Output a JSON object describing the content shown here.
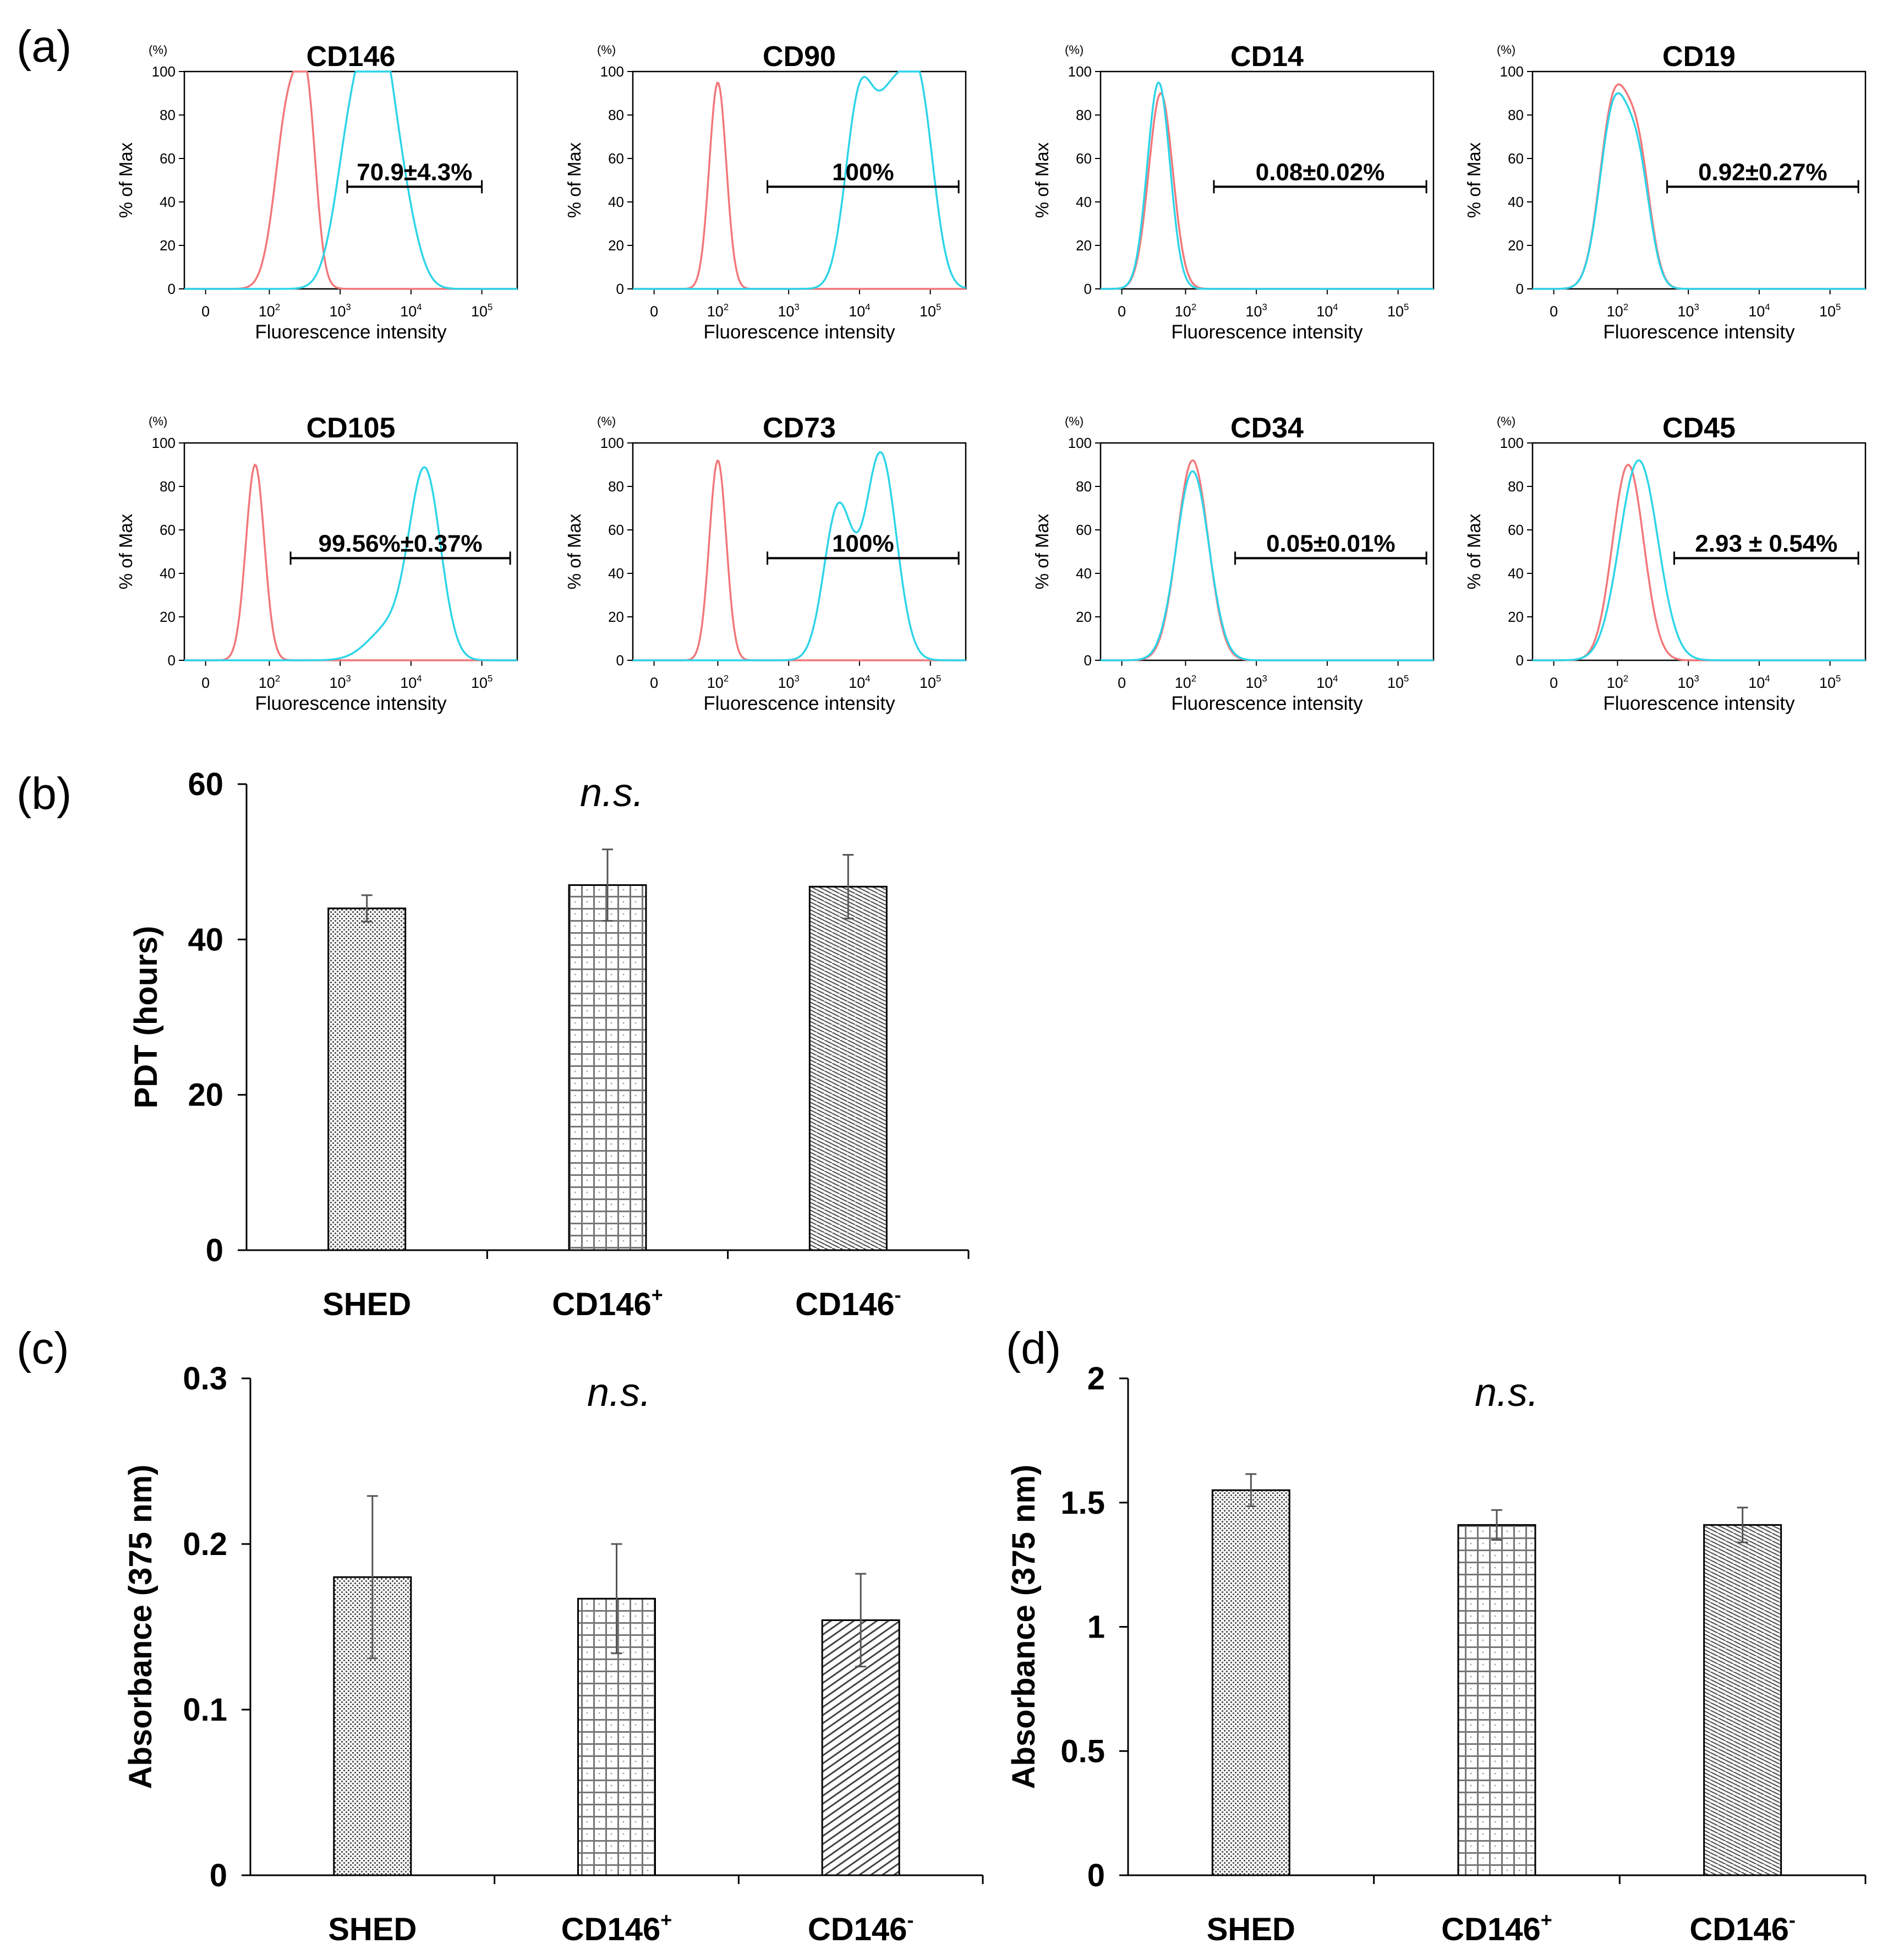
{
  "figure": {
    "panel_labels": [
      "(a)",
      "(b)",
      "(c)",
      "(d)"
    ],
    "colors": {
      "isotype": "#f2777a",
      "stained": "#2dd4e8",
      "axis": "#000000",
      "text": "#000000"
    }
  },
  "chart_data": [
    {
      "panel": "(a)",
      "type": "histogram",
      "shared": {
        "ylabel": "% of Max",
        "yunit": "(%)",
        "xlabel": "Fluorescence intensity",
        "yticks": [
          "0",
          "20",
          "40",
          "60",
          "80",
          "100"
        ],
        "xticks": [
          {
            "base": "0",
            "exp": ""
          },
          {
            "base": "10",
            "exp": "2"
          },
          {
            "base": "10",
            "exp": "3"
          },
          {
            "base": "10",
            "exp": "4"
          },
          {
            "base": "10",
            "exp": "5"
          }
        ],
        "ylim": [
          0,
          100
        ],
        "x_scale": "biexponential"
      },
      "histograms": [
        {
          "marker": "CD146",
          "gate_label": "70.9±4.3%",
          "gate": [
            3.1,
            5.0
          ],
          "isotype": {
            "peaks": [
              [
                2.3,
                0.2,
                0.9
              ],
              [
                2.55,
                0.12,
                0.55
              ]
            ]
          },
          "stained": {
            "peaks": [
              [
                3.2,
                0.24,
                0.8
              ],
              [
                3.55,
                0.2,
                0.82
              ],
              [
                3.85,
                0.22,
                0.4
              ]
            ]
          }
        },
        {
          "marker": "CD90",
          "gate_label": "100%",
          "gate": [
            2.7,
            5.4
          ],
          "isotype": {
            "peaks": [
              [
                2.0,
                0.12,
                0.95
              ]
            ]
          },
          "stained": {
            "peaks": [
              [
                4.0,
                0.2,
                0.85
              ],
              [
                4.45,
                0.22,
                0.78
              ],
              [
                4.85,
                0.2,
                0.85
              ]
            ]
          }
        },
        {
          "marker": "CD14",
          "gate_label": "0.08±0.02%",
          "gate": [
            2.4,
            5.4
          ],
          "isotype": {
            "peaks": [
              [
                1.65,
                0.17,
                0.9
              ]
            ]
          },
          "stained": {
            "peaks": [
              [
                1.62,
                0.16,
                0.95
              ]
            ]
          }
        },
        {
          "marker": "CD19",
          "gate_label": "0.92±0.27%",
          "gate": [
            2.7,
            5.4
          ],
          "isotype": {
            "peaks": [
              [
                1.95,
                0.2,
                0.85
              ],
              [
                2.3,
                0.17,
                0.55
              ]
            ]
          },
          "stained": {
            "peaks": [
              [
                1.95,
                0.2,
                0.82
              ],
              [
                2.3,
                0.17,
                0.5
              ]
            ]
          }
        },
        {
          "marker": "CD105",
          "gate_label": "99.56%±0.37%",
          "gate": [
            2.3,
            5.4
          ],
          "isotype": {
            "peaks": [
              [
                1.8,
                0.13,
                0.9
              ]
            ]
          },
          "stained": {
            "peaks": [
              [
                4.2,
                0.22,
                0.85
              ],
              [
                3.7,
                0.3,
                0.15
              ]
            ]
          }
        },
        {
          "marker": "CD73",
          "gate_label": "100%",
          "gate": [
            2.7,
            5.4
          ],
          "isotype": {
            "peaks": [
              [
                2.0,
                0.12,
                0.92
              ]
            ]
          },
          "stained": {
            "peaks": [
              [
                3.7,
                0.2,
                0.7
              ],
              [
                4.3,
                0.22,
                0.95
              ]
            ]
          }
        },
        {
          "marker": "CD34",
          "gate_label": "0.05±0.01%",
          "gate": [
            2.7,
            5.4
          ],
          "isotype": {
            "peaks": [
              [
                2.1,
                0.22,
                0.92
              ]
            ]
          },
          "stained": {
            "peaks": [
              [
                2.1,
                0.23,
                0.87
              ]
            ]
          }
        },
        {
          "marker": "CD45",
          "gate_label": "2.93 ± 0.54%",
          "gate": [
            2.8,
            5.4
          ],
          "isotype": {
            "peaks": [
              [
                2.15,
                0.22,
                0.9
              ]
            ]
          },
          "stained": {
            "peaks": [
              [
                2.3,
                0.27,
                0.92
              ]
            ]
          }
        }
      ]
    },
    {
      "panel": "(b)",
      "type": "bar",
      "categories": [
        "SHED",
        "CD146+",
        "CD146-"
      ],
      "category_labels": [
        {
          "base": "SHED",
          "sup": ""
        },
        {
          "base": "CD146",
          "sup": "+"
        },
        {
          "base": "CD146",
          "sup": "-"
        }
      ],
      "values": [
        44.0,
        47.0,
        46.8
      ],
      "errors": [
        1.7,
        4.6,
        4.1
      ],
      "patterns": [
        "dots",
        "grid",
        "hatch"
      ],
      "ylabel": "PDT (hours)",
      "ylim": [
        0,
        60
      ],
      "yticks": [
        "0",
        "20",
        "40",
        "60"
      ],
      "annotation": "n.s."
    },
    {
      "panel": "(c)",
      "type": "bar",
      "categories": [
        "SHED",
        "CD146+",
        "CD146-"
      ],
      "category_labels": [
        {
          "base": "SHED",
          "sup": ""
        },
        {
          "base": "CD146",
          "sup": "+"
        },
        {
          "base": "CD146",
          "sup": "-"
        }
      ],
      "values": [
        0.18,
        0.167,
        0.154
      ],
      "errors": [
        0.049,
        0.033,
        0.028
      ],
      "patterns": [
        "dots",
        "grid",
        "hatch2"
      ],
      "ylabel": "Absorbance (375 nm)",
      "ylim": [
        0,
        0.3
      ],
      "yticks": [
        "0",
        "0.1",
        "0.2",
        "0.3"
      ],
      "annotation": "n.s."
    },
    {
      "panel": "(d)",
      "type": "bar",
      "categories": [
        "SHED",
        "CD146+",
        "CD146-"
      ],
      "category_labels": [
        {
          "base": "SHED",
          "sup": ""
        },
        {
          "base": "CD146",
          "sup": "+"
        },
        {
          "base": "CD146",
          "sup": "-"
        }
      ],
      "values": [
        1.55,
        1.41,
        1.41
      ],
      "errors": [
        0.065,
        0.06,
        0.07
      ],
      "patterns": [
        "dots",
        "grid",
        "hatch"
      ],
      "ylabel": "Absorbance (375 nm)",
      "ylim": [
        0,
        2
      ],
      "yticks": [
        "0",
        "0.5",
        "1",
        "1.5",
        "2"
      ],
      "annotation": "n.s."
    }
  ]
}
